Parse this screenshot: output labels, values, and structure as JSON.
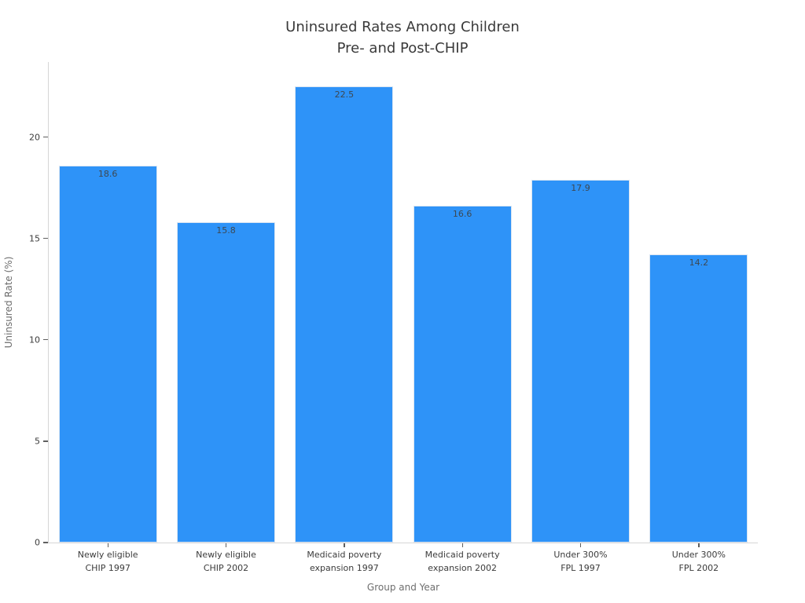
{
  "figure": {
    "title_line1": "Uninsured Rates Among Children",
    "title_line2": "Pre- and Post-CHIP"
  },
  "chart_data": {
    "type": "bar",
    "title": "Uninsured Rates Among Children\nPre- and Post-CHIP",
    "categories": [
      "Newly eligible\nCHIP 1997",
      "Newly eligible\nCHIP 2002",
      "Medicaid poverty\nexpansion 1997",
      "Medicaid poverty\nexpansion 2002",
      "Under 300%\nFPL 1997",
      "Under 300%\nFPL 2002"
    ],
    "values": [
      18.6,
      15.8,
      22.5,
      16.6,
      17.9,
      14.2
    ],
    "value_labels": [
      "18.6",
      "15.8",
      "22.5",
      "16.6",
      "17.9",
      "14.2"
    ],
    "xlabel": "Group and Year",
    "ylabel": "Uninsured Rate (%)",
    "yticks": [
      0,
      5,
      10,
      15,
      20
    ],
    "ylim": [
      0,
      23.7
    ],
    "grid": false,
    "legend": false,
    "bar_color": "#2e93f8",
    "bar_edge_color": "#d9e5f2",
    "value_label_color": "#3d4852",
    "spine_color": "#d6d6d6",
    "tick_color": "#5f5f5f",
    "tick_label_color": "#3b3b3b",
    "axis_title_color": "#6e6e6e",
    "title_color": "#3a3a3a"
  }
}
